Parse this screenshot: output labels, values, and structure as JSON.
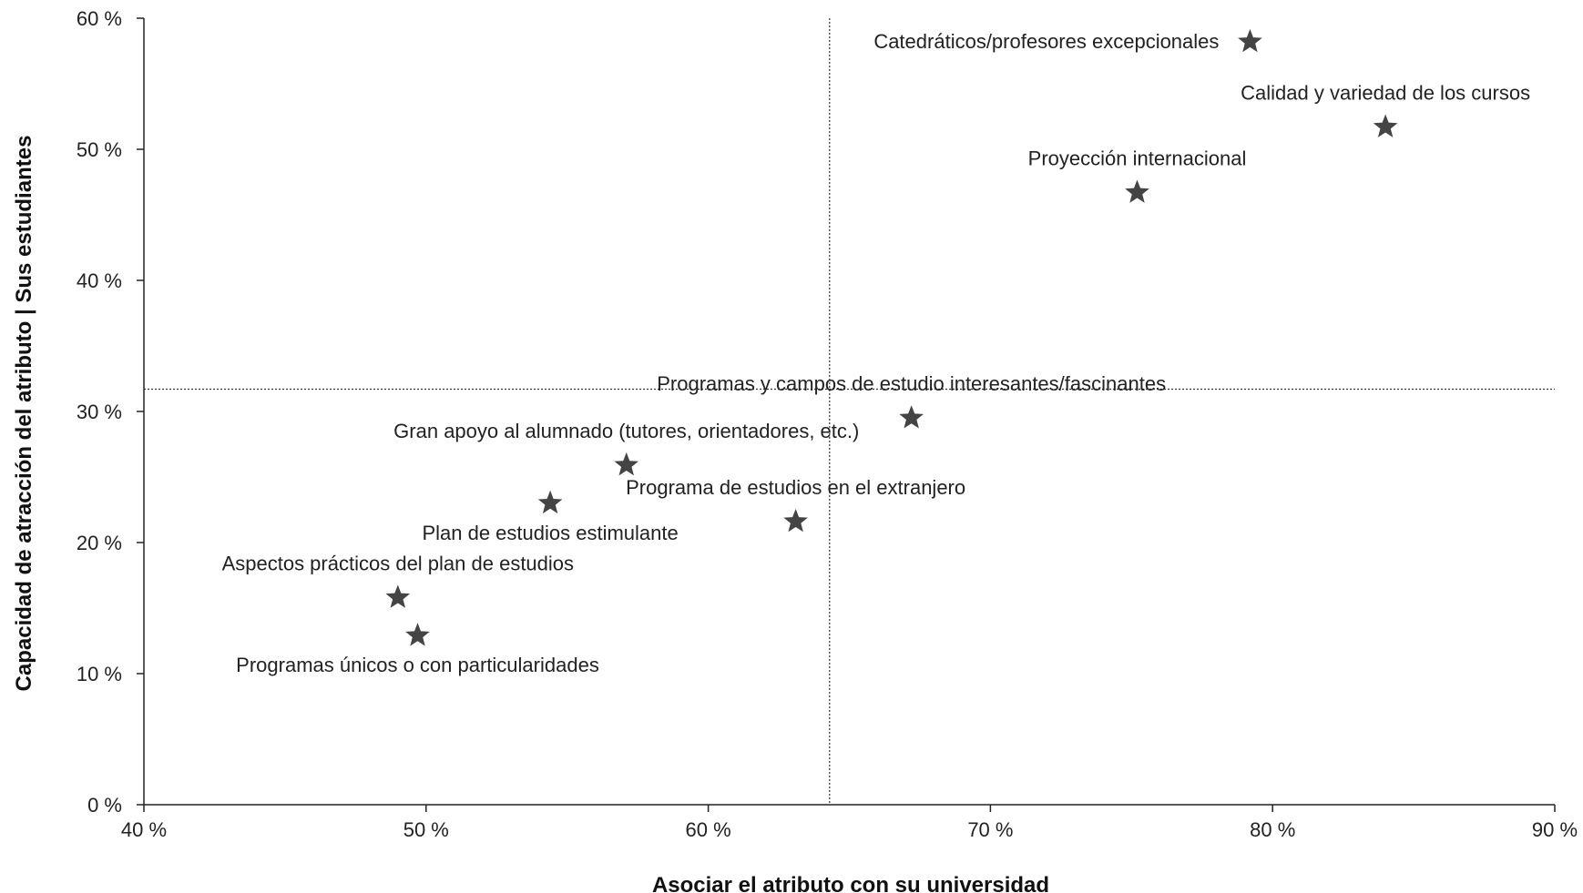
{
  "chart_data": {
    "type": "scatter",
    "xlabel": "Asociar el atributo con su universidad",
    "ylabel": "Capacidad de atracción del atributo | Sus estudiantes",
    "xlim": [
      40,
      90
    ],
    "ylim": [
      0,
      60
    ],
    "x_ticks": [
      40,
      50,
      60,
      70,
      80,
      90
    ],
    "y_ticks": [
      0,
      10,
      20,
      30,
      40,
      50,
      60
    ],
    "x_tick_labels": [
      "40 %",
      "50 %",
      "60 %",
      "70 %",
      "80 %",
      "90 %"
    ],
    "y_tick_labels": [
      "0 %",
      "10 %",
      "20 %",
      "30 %",
      "40 %",
      "50 %",
      "60 %"
    ],
    "grid": false,
    "marker": "star",
    "marker_color": "#444444",
    "reference_lines": {
      "x": 64.3,
      "y": 31.7
    },
    "points": [
      {
        "label": "Catedráticos/profesores excepcionales",
        "x": 79.2,
        "y": 58.2,
        "label_pos": "left"
      },
      {
        "label": "Calidad y variedad de los cursos",
        "x": 84.0,
        "y": 51.7,
        "label_pos": "above"
      },
      {
        "label": "Proyección internacional",
        "x": 75.2,
        "y": 46.7,
        "label_pos": "above"
      },
      {
        "label": "Programas y campos de estudio interesantes/fascinantes",
        "x": 67.2,
        "y": 29.5,
        "label_pos": "above"
      },
      {
        "label": "Gran apoyo al alumnado (tutores, orientadores, etc.)",
        "x": 57.1,
        "y": 25.9,
        "label_pos": "above"
      },
      {
        "label": "Programa de estudios en el extranjero",
        "x": 63.1,
        "y": 21.6,
        "label_pos": "above"
      },
      {
        "label": "Plan de estudios estimulante",
        "x": 54.4,
        "y": 23.0,
        "label_pos": "below"
      },
      {
        "label": "Aspectos prácticos del plan de estudios",
        "x": 49.0,
        "y": 15.8,
        "label_pos": "above"
      },
      {
        "label": "Programas únicos o con particularidades",
        "x": 49.7,
        "y": 12.9,
        "label_pos": "below"
      }
    ]
  }
}
